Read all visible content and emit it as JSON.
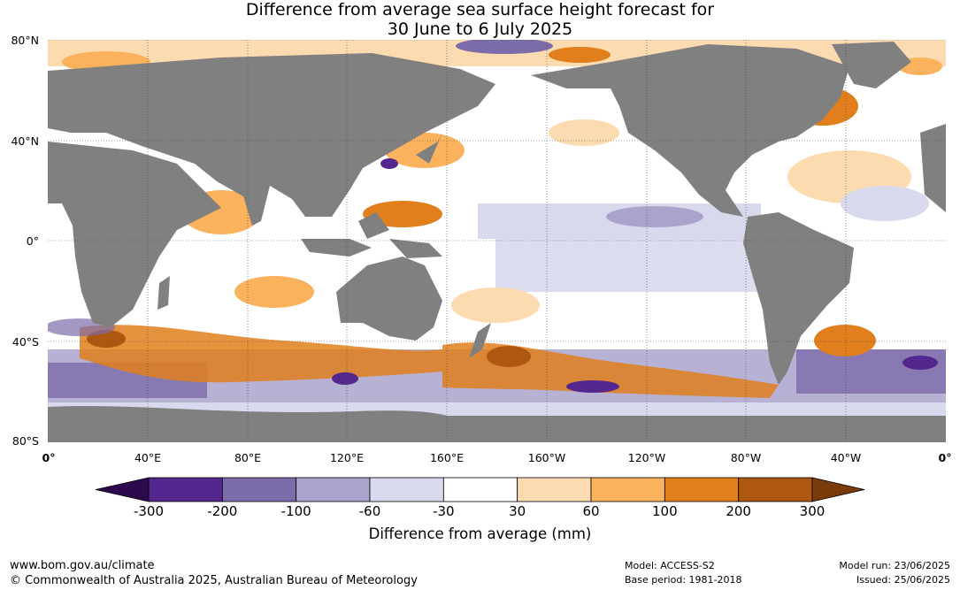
{
  "title": {
    "line1": "Difference from average sea surface height forecast for",
    "line2": "30 June to 6 July 2025"
  },
  "map": {
    "lat_labels": [
      "80°N",
      "40°N",
      "0°",
      "40°S",
      "80°S"
    ],
    "lon_labels": [
      "0°",
      "40°E",
      "80°E",
      "120°E",
      "160°E",
      "160°W",
      "120°W",
      "80°W",
      "40°W",
      "0°"
    ],
    "land_color": "#808080",
    "ocean_color": "#ffffff"
  },
  "colorbar": {
    "ticks": [
      "-300",
      "-200",
      "-100",
      "-60",
      "-30",
      "30",
      "60",
      "100",
      "200",
      "300"
    ],
    "colors": [
      "#2d0a4e",
      "#54278f",
      "#7c6ca9",
      "#aaa3cc",
      "#d8d9ec",
      "#ffffff",
      "#fddbb0",
      "#fbb25c",
      "#e07f1c",
      "#ae5710",
      "#7a3b0b"
    ],
    "label": "Difference from average (mm)"
  },
  "footer": {
    "site": "www.bom.gov.au/climate",
    "copyright": "© Commonwealth of Australia 2025, Australian Bureau of Meteorology",
    "model": "Model: ACCESS-S2",
    "base_period": "Base period: 1981-2018",
    "model_run": "Model run: 23/06/2025",
    "issued": "Issued: 25/06/2025"
  }
}
